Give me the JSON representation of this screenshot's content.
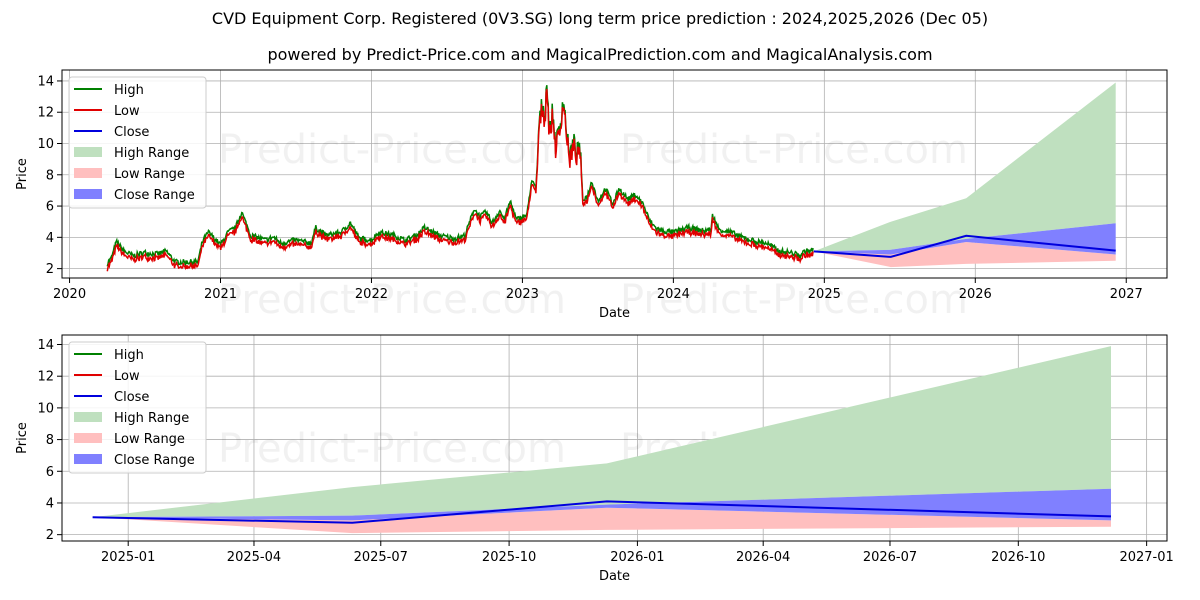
{
  "title": "CVD Equipment Corp. Registered (0V3.SG) long term price prediction : 2024,2025,2026 (Dec 05)",
  "subtitle": "powered by Predict-Price.com and MagicalPrediction.com and MagicalAnalysis.com",
  "watermark": "Predict-Price.com",
  "colors": {
    "high": "#008000",
    "low": "#e00000",
    "close": "#0000dd",
    "high_range": "#bfe0bf",
    "low_range": "#ffbfbf",
    "close_range": "#8080ff"
  },
  "chart_data": [
    {
      "type": "line",
      "xlabel": "Date",
      "ylabel": "Price",
      "xlim": [
        2019.95,
        2027.27
      ],
      "ylim": [
        1.4,
        14.7
      ],
      "xticks": [
        2020,
        2021,
        2022,
        2023,
        2024,
        2025,
        2026,
        2027
      ],
      "xtick_labels": [
        "2020",
        "2021",
        "2022",
        "2023",
        "2024",
        "2025",
        "2026",
        "2027"
      ],
      "yticks": [
        2,
        4,
        6,
        8,
        10,
        12,
        14
      ],
      "grid": true,
      "legend_position": "top-left",
      "legend": [
        "High",
        "Low",
        "Close",
        "High Range",
        "Low Range",
        "Close Range"
      ],
      "history_keypoints": [
        [
          2020.25,
          2.2
        ],
        [
          2020.28,
          2.6
        ],
        [
          2020.31,
          3.6
        ],
        [
          2020.36,
          3.0
        ],
        [
          2020.42,
          2.7
        ],
        [
          2020.5,
          2.9
        ],
        [
          2020.58,
          2.8
        ],
        [
          2020.64,
          3.0
        ],
        [
          2020.7,
          2.3
        ],
        [
          2020.85,
          2.3
        ],
        [
          2020.88,
          3.6
        ],
        [
          2020.92,
          4.2
        ],
        [
          2021.0,
          3.4
        ],
        [
          2021.05,
          4.2
        ],
        [
          2021.1,
          4.5
        ],
        [
          2021.14,
          5.5
        ],
        [
          2021.2,
          4.0
        ],
        [
          2021.3,
          3.7
        ],
        [
          2021.35,
          3.9
        ],
        [
          2021.4,
          3.5
        ],
        [
          2021.5,
          3.7
        ],
        [
          2021.6,
          3.5
        ],
        [
          2021.63,
          4.5
        ],
        [
          2021.7,
          4.0
        ],
        [
          2021.8,
          4.2
        ],
        [
          2021.86,
          4.8
        ],
        [
          2021.92,
          3.8
        ],
        [
          2022.0,
          3.7
        ],
        [
          2022.05,
          4.2
        ],
        [
          2022.15,
          4.0
        ],
        [
          2022.22,
          3.7
        ],
        [
          2022.3,
          4.0
        ],
        [
          2022.35,
          4.5
        ],
        [
          2022.45,
          4.0
        ],
        [
          2022.55,
          3.8
        ],
        [
          2022.62,
          4.0
        ],
        [
          2022.68,
          5.7
        ],
        [
          2022.72,
          5.2
        ],
        [
          2022.76,
          5.5
        ],
        [
          2022.8,
          4.8
        ],
        [
          2022.85,
          5.6
        ],
        [
          2022.88,
          5.0
        ],
        [
          2022.92,
          6.2
        ],
        [
          2022.96,
          5.0
        ],
        [
          2023.0,
          5.2
        ],
        [
          2023.03,
          5.3
        ],
        [
          2023.06,
          7.5
        ],
        [
          2023.09,
          7.0
        ],
        [
          2023.11,
          11.0
        ],
        [
          2023.13,
          12.5
        ],
        [
          2023.15,
          11.5
        ],
        [
          2023.16,
          14.0
        ],
        [
          2023.18,
          10.5
        ],
        [
          2023.2,
          12.0
        ],
        [
          2023.22,
          9.8
        ],
        [
          2023.25,
          11.0
        ],
        [
          2023.27,
          12.8
        ],
        [
          2023.29,
          11.0
        ],
        [
          2023.31,
          9.0
        ],
        [
          2023.34,
          10.0
        ],
        [
          2023.36,
          9.2
        ],
        [
          2023.38,
          9.9
        ],
        [
          2023.4,
          6.3
        ],
        [
          2023.43,
          6.5
        ],
        [
          2023.46,
          7.5
        ],
        [
          2023.5,
          6.2
        ],
        [
          2023.55,
          7.0
        ],
        [
          2023.6,
          6.0
        ],
        [
          2023.64,
          7.0
        ],
        [
          2023.7,
          6.3
        ],
        [
          2023.75,
          6.6
        ],
        [
          2023.8,
          6.0
        ],
        [
          2023.84,
          5.0
        ],
        [
          2023.88,
          4.5
        ],
        [
          2023.92,
          4.3
        ],
        [
          2024.0,
          4.2
        ],
        [
          2024.1,
          4.5
        ],
        [
          2024.2,
          4.3
        ],
        [
          2024.25,
          4.4
        ],
        [
          2024.26,
          5.3
        ],
        [
          2024.3,
          4.4
        ],
        [
          2024.38,
          4.2
        ],
        [
          2024.45,
          3.9
        ],
        [
          2024.55,
          3.6
        ],
        [
          2024.62,
          3.5
        ],
        [
          2024.7,
          3.0
        ],
        [
          2024.78,
          2.9
        ],
        [
          2024.84,
          2.7
        ],
        [
          2024.87,
          3.0
        ],
        [
          2024.9,
          3.0
        ],
        [
          2024.93,
          3.1
        ]
      ],
      "prediction": {
        "x": [
          2024.93,
          2025.44,
          2025.94,
          2026.93
        ],
        "close": [
          3.1,
          2.75,
          4.1,
          3.15
        ],
        "high_range_upper": [
          3.1,
          5.0,
          6.5,
          13.9
        ],
        "close_range_upper": [
          3.1,
          3.2,
          3.9,
          4.9
        ],
        "close_range_lower": [
          3.1,
          2.9,
          3.7,
          2.9
        ],
        "low_range_lower": [
          3.1,
          2.1,
          2.3,
          2.5
        ]
      }
    },
    {
      "type": "line",
      "xlabel": "Date",
      "ylabel": "Price",
      "xlim": [
        2024.87,
        2027.04
      ],
      "ylim": [
        1.6,
        14.6
      ],
      "xticks": [
        2025.0,
        2025.247,
        2025.496,
        2025.748,
        2026.0,
        2026.247,
        2026.496,
        2026.748,
        2027.0
      ],
      "xtick_labels": [
        "2025-01",
        "2025-04",
        "2025-07",
        "2025-10",
        "2026-01",
        "2026-04",
        "2026-07",
        "2026-10",
        "2027-01"
      ],
      "yticks": [
        2,
        4,
        6,
        8,
        10,
        12,
        14
      ],
      "grid": true,
      "legend_position": "top-left",
      "legend": [
        "High",
        "Low",
        "Close",
        "High Range",
        "Low Range",
        "Close Range"
      ],
      "prediction": {
        "x": [
          2024.93,
          2025.44,
          2025.94,
          2026.93
        ],
        "close": [
          3.1,
          2.75,
          4.1,
          3.15
        ],
        "high_range_upper": [
          3.1,
          5.0,
          6.5,
          13.9
        ],
        "close_range_upper": [
          3.1,
          3.2,
          3.9,
          4.9
        ],
        "close_range_lower": [
          3.1,
          2.9,
          3.7,
          2.9
        ],
        "low_range_lower": [
          3.1,
          2.1,
          2.3,
          2.5
        ]
      }
    }
  ]
}
